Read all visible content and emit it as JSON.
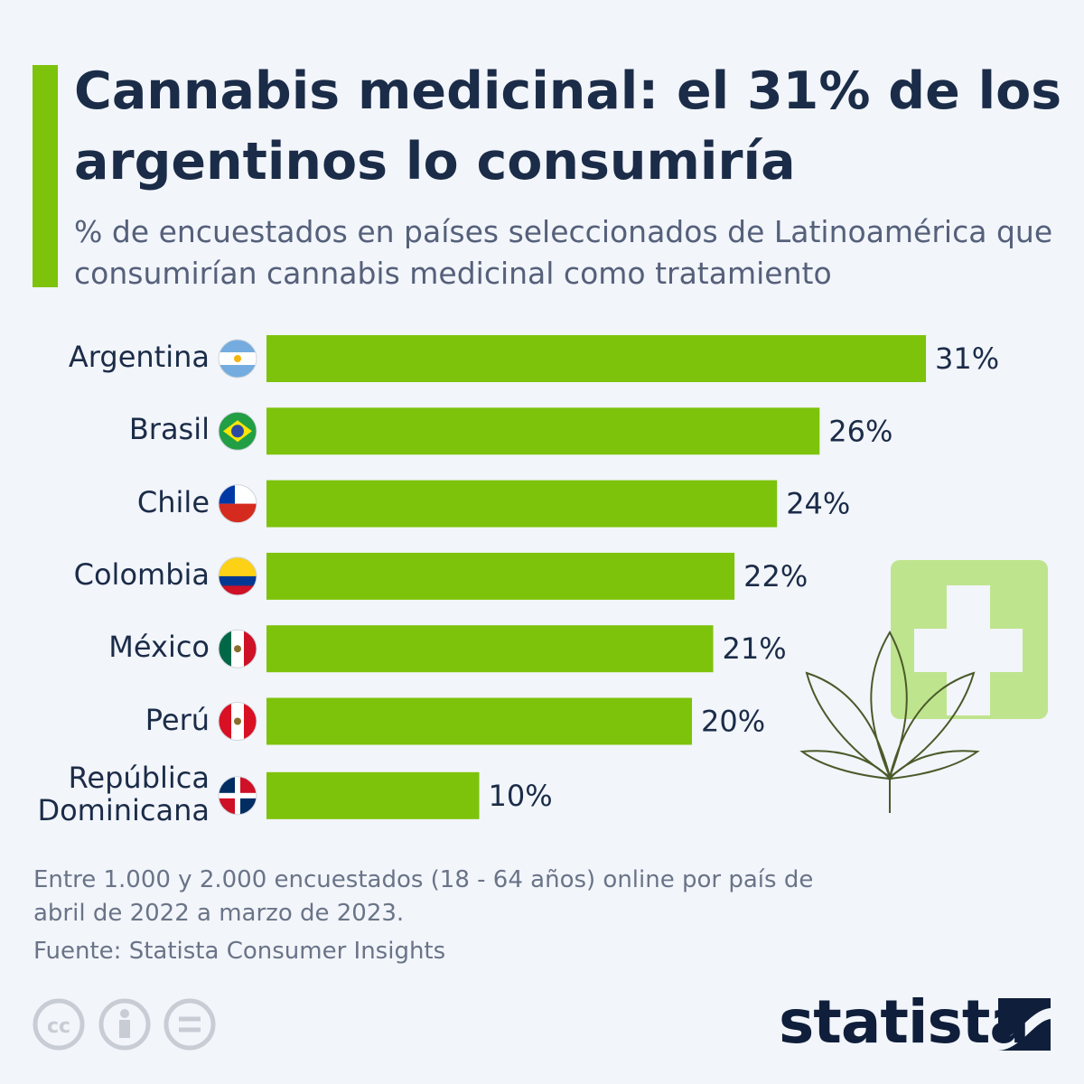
{
  "chart_data": {
    "type": "bar",
    "orientation": "horizontal",
    "title": "Cannabis medicinal: el 31% de los argentinos lo consumiría",
    "subtitle": "% de encuestados en países seleccionados de Latinoamérica que consumirían cannabis medicinal como tratamiento",
    "categories": [
      "Argentina",
      "Brasil",
      "Chile",
      "Colombia",
      "México",
      "Perú",
      "República Dominicana"
    ],
    "values": [
      31,
      26,
      24,
      22,
      21,
      20,
      10
    ],
    "value_labels": [
      "31%",
      "26%",
      "24%",
      "22%",
      "21%",
      "20%",
      "10%"
    ],
    "color": "#7dc30b",
    "note": "Entre 1.000 y 2.000 encuestados (18 - 64 años) online por país de abril de 2022 a marzo de 2023.",
    "source": "Fuente: Statista Consumer Insights",
    "brand": "statista"
  }
}
